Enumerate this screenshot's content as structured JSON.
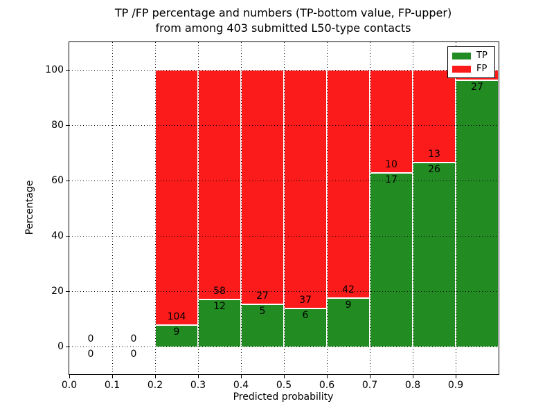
{
  "chart_data": {
    "type": "bar",
    "stacked": true,
    "title_line1": "TP /FP percentage and numbers (TP-bottom value, FP-upper)",
    "title_line2": "from among 403 submitted L50-type contacts",
    "xlabel": "Predicted probability",
    "ylabel": "Percentage",
    "xlim": [
      0.0,
      1.0
    ],
    "ylim": [
      -10,
      110
    ],
    "grid": true,
    "yticks": [
      0,
      20,
      40,
      60,
      80,
      100
    ],
    "xticks": [
      "0.0",
      "0.1",
      "0.2",
      "0.3",
      "0.4",
      "0.5",
      "0.6",
      "0.7",
      "0.8",
      "0.9"
    ],
    "xtick_values": [
      0.0,
      0.1,
      0.2,
      0.3,
      0.4,
      0.5,
      0.6,
      0.7,
      0.8,
      0.9
    ],
    "legend": {
      "position": "upper-right",
      "entries": [
        {
          "label": "TP",
          "color": "#228b22"
        },
        {
          "label": "FP",
          "color": "#fb1b1b"
        }
      ]
    },
    "colors": {
      "tp": "#228b22",
      "fp": "#fb1b1b",
      "grid": "#000000",
      "bar_edge": "#ffffff"
    },
    "bins": [
      {
        "x0": 0.0,
        "x1": 0.1,
        "tp": 0,
        "fp": 0,
        "tp_label": "0",
        "fp_label": "0"
      },
      {
        "x0": 0.1,
        "x1": 0.2,
        "tp": 0,
        "fp": 0,
        "tp_label": "0",
        "fp_label": "0"
      },
      {
        "x0": 0.2,
        "x1": 0.3,
        "tp": 9,
        "fp": 104,
        "tp_label": "9",
        "fp_label": "104"
      },
      {
        "x0": 0.3,
        "x1": 0.4,
        "tp": 12,
        "fp": 58,
        "tp_label": "12",
        "fp_label": "58"
      },
      {
        "x0": 0.4,
        "x1": 0.5,
        "tp": 5,
        "fp": 27,
        "tp_label": "5",
        "fp_label": "27"
      },
      {
        "x0": 0.5,
        "x1": 0.6,
        "tp": 6,
        "fp": 37,
        "tp_label": "6",
        "fp_label": "37"
      },
      {
        "x0": 0.6,
        "x1": 0.7,
        "tp": 9,
        "fp": 42,
        "tp_label": "9",
        "fp_label": "42"
      },
      {
        "x0": 0.7,
        "x1": 0.8,
        "tp": 17,
        "fp": 10,
        "tp_label": "17",
        "fp_label": "10"
      },
      {
        "x0": 0.8,
        "x1": 0.9,
        "tp": 26,
        "fp": 13,
        "tp_label": "26",
        "fp_label": "13"
      },
      {
        "x0": 0.9,
        "x1": 1.0,
        "tp": 27,
        "fp": 1,
        "tp_label": "27",
        "fp_label": ""
      }
    ]
  }
}
